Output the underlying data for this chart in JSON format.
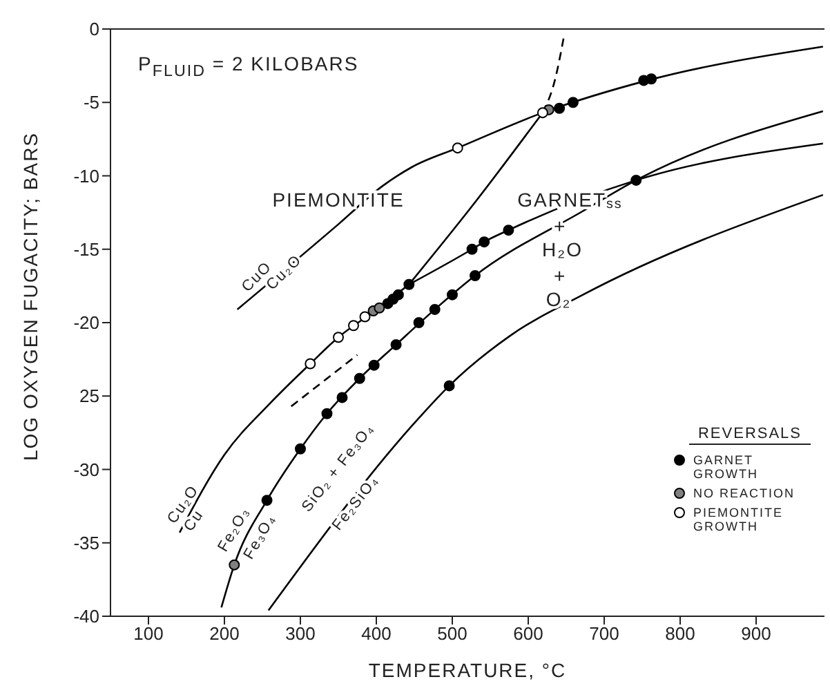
{
  "chart_data": {
    "type": "line",
    "xlabel": "TEMPERATURE, °C",
    "ylabel": "LOG OXYGEN FUGACITY; BARS",
    "xlim": [
      50,
      990
    ],
    "xticks": [
      100,
      200,
      300,
      400,
      500,
      600,
      700,
      800,
      900
    ],
    "ylim": [
      -40,
      0
    ],
    "yticks": [
      0,
      -5,
      -10,
      -15,
      -20,
      {
        "value": -25,
        "label": "25"
      },
      -30,
      -35,
      -40
    ],
    "grid": false,
    "legend": "right",
    "legend_title": "REVERSALS",
    "marker": "none",
    "line_style": "solid",
    "annotations": [
      "P$_{FLUID}$ = 2 KILOBARS",
      "PIEMONTITE",
      "GARNET$_{ss}$",
      "+",
      "H₂O",
      "+",
      "O₂",
      "CuO",
      "Cu₂O",
      "Cu₂O",
      "Cu",
      "Fe₂O₃",
      "Fe₃O₄",
      "SiO₂ + Fe₃O₄",
      "Fe₂SiO₄"
    ],
    "series": [
      {
        "color": "#000000",
        "x": [
          217,
          350,
          408,
          447,
          507,
          619,
          757,
          988
        ],
        "values": [
          -19.1,
          -13.3,
          -10.7,
          -9.4,
          -8.1,
          -5.7,
          -3.5,
          -1.2
        ]
      },
      {
        "color": "#000000",
        "x": [
          141,
          200,
          260,
          313,
          350,
          398,
          443
        ],
        "values": [
          -34.3,
          -29.0,
          -25.5,
          -22.8,
          -21.0,
          -19.2,
          -17.4
        ]
      },
      {
        "color": "#000000",
        "x": [
          443,
          526,
          542,
          574,
          742,
          988
        ],
        "values": [
          -17.4,
          -15.0,
          -14.5,
          -13.7,
          -10.3,
          -7.8
        ]
      },
      {
        "color": "#000000",
        "x": [
          443,
          530,
          619
        ],
        "values": [
          -17.4,
          -11.8,
          -5.7
        ]
      },
      {
        "color": "#000000",
        "line_style": "dashed",
        "x": [
          619,
          635,
          647
        ],
        "values": [
          -5.7,
          -3.5,
          -0.5
        ]
      },
      {
        "color": "#000000",
        "line_style": "dashed",
        "x": [
          288,
          375
        ],
        "values": [
          -25.7,
          -22.2
        ]
      },
      {
        "color": "#000000",
        "x": [
          196,
          213,
          256,
          300,
          335,
          378,
          426,
          477,
          530,
          672,
          742,
          988
        ],
        "values": [
          -39.4,
          -36.5,
          -32.1,
          -28.6,
          -26.2,
          -23.8,
          -21.5,
          -19.1,
          -16.8,
          -12.4,
          -10.3,
          -5.6
        ]
      },
      {
        "color": "#000000",
        "x": [
          258,
          456,
          496,
          576,
          672,
          988
        ],
        "values": [
          -39.6,
          -26.5,
          -24.3,
          -20.9,
          -18.1,
          -11.3
        ]
      },
      {
        "type": "scatter",
        "name": "GARNET GROWTH",
        "color": "#000000",
        "marker": "circle",
        "x": [
          256,
          300,
          335,
          355,
          378,
          397,
          426,
          456,
          477,
          500,
          530,
          526,
          542,
          574,
          742,
          415,
          422,
          429,
          443,
          641,
          659,
          752,
          762,
          496
        ],
        "values": [
          -32.1,
          -28.6,
          -26.2,
          -25.1,
          -23.8,
          -22.9,
          -21.5,
          -20.0,
          -19.1,
          -18.1,
          -16.8,
          -15.0,
          -14.5,
          -13.7,
          -10.3,
          -18.7,
          -18.4,
          -18.1,
          -17.4,
          -5.4,
          -5.0,
          -3.5,
          -3.4,
          -24.3
        ]
      },
      {
        "type": "scatter",
        "name": "NO REACTION",
        "color": "#808080",
        "marker": "circle",
        "x": [
          213,
          396,
          404,
          627
        ],
        "values": [
          -36.5,
          -19.2,
          -19.0,
          -5.5
        ]
      },
      {
        "type": "scatter",
        "name": "PIEMONTITE GROWTH",
        "color": "#ffffff",
        "marker": "circle",
        "x": [
          313,
          350,
          370,
          385,
          507,
          619
        ],
        "values": [
          -22.8,
          -21.0,
          -20.2,
          -19.6,
          -8.1,
          -5.7
        ]
      }
    ]
  }
}
